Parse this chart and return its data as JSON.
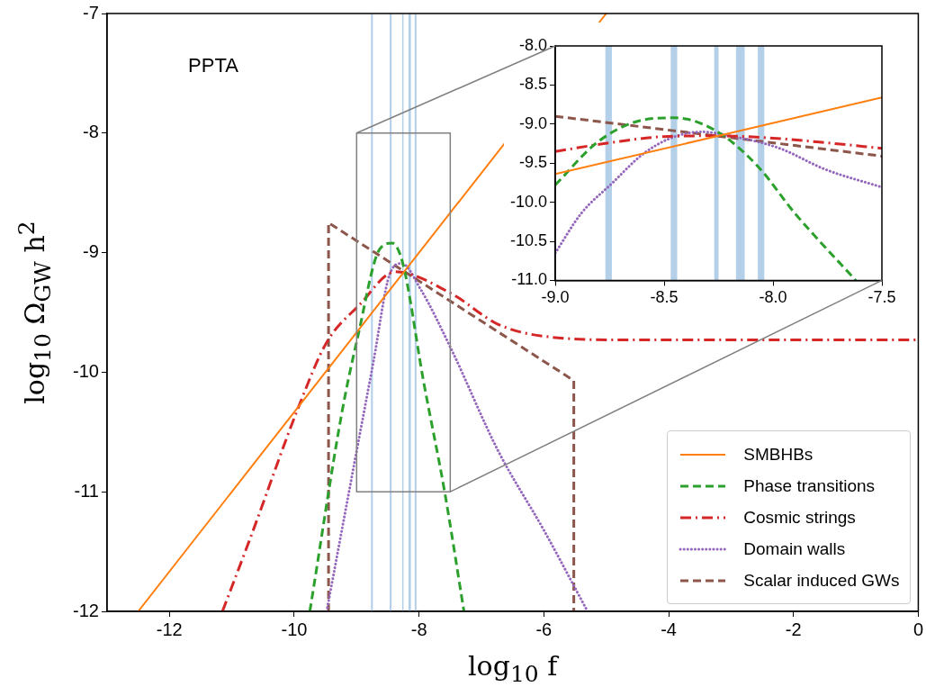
{
  "chart_data": [
    {
      "type": "line",
      "xlabel": "log$_{10}$ f",
      "ylabel": "log$_{10}$ Ω$_{GW}$ h$^{2}$",
      "annotations": [
        "PPTA"
      ],
      "xlim": [
        -13,
        0
      ],
      "xticks": [
        -12,
        -10,
        -8,
        -6,
        -4,
        -2,
        0
      ],
      "ylim": [
        -12,
        -7
      ],
      "yticks": [
        -12,
        -11,
        -10,
        -9,
        -8,
        -7
      ],
      "grid": false,
      "legend": "bottom right",
      "bands": [
        {
          "axis": "x",
          "from": -8.77,
          "to": -8.74,
          "color": "#b4d0e8"
        },
        {
          "axis": "x",
          "from": -8.47,
          "to": -8.44,
          "color": "#b4d0e8"
        },
        {
          "axis": "x",
          "from": -8.27,
          "to": -8.25,
          "color": "#b4d0e8"
        },
        {
          "axis": "x",
          "from": -8.17,
          "to": -8.13,
          "color": "#b4d0e8"
        },
        {
          "axis": "x",
          "from": -8.07,
          "to": -8.04,
          "color": "#b4d0e8"
        }
      ],
      "series": [
        {
          "name": "SMBHBs",
          "color": "#ff7f0e",
          "line_style": "solid",
          "x": [
            -12.5,
            -5.0
          ],
          "values": [
            -12,
            -7
          ]
        },
        {
          "name": "Phase transitions",
          "color": "#2ca02c",
          "line_style": "dashed",
          "x": [
            -9.75,
            -9.23,
            -8.98,
            -8.63,
            -8.43,
            -8.26,
            -7.93,
            -7.59,
            -7.28
          ],
          "values": [
            -12,
            -10.32,
            -9.7,
            -8.97,
            -8.92,
            -9.09,
            -10.07,
            -11,
            -12
          ]
        },
        {
          "name": "Cosmic strings",
          "color": "#d62728",
          "line_style": "dashdot",
          "x": [
            -11.15,
            -10.72,
            -9.9,
            -9.48,
            -8.96,
            -8.38,
            -7.49,
            -6.73,
            -5.99,
            -4.65,
            -3,
            0
          ],
          "values": [
            -12,
            -11.41,
            -10.25,
            -9.75,
            -9.44,
            -9.16,
            -9.34,
            -9.6,
            -9.7,
            -9.73,
            -9.73,
            -9.73
          ]
        },
        {
          "name": "Domain walls",
          "color": "#9467bd",
          "line_style": "dotted",
          "x": [
            -9.48,
            -9.0,
            -8.73,
            -8.47,
            -8.28,
            -7.97,
            -7.49,
            -6.73,
            -5.99,
            -5.3
          ],
          "values": [
            -12,
            -10.66,
            -9.91,
            -9.18,
            -9.09,
            -9.31,
            -9.8,
            -10.66,
            -11.33,
            -12
          ]
        },
        {
          "name": "Scalar induced GWs",
          "color": "#8c564b",
          "line_style": "dashed",
          "x": [
            -9.45,
            -9.45,
            -5.52,
            -5.52
          ],
          "values": [
            -12,
            -8.75,
            -10.07,
            -12
          ]
        }
      ]
    },
    {
      "type": "line",
      "xlim": [
        -9,
        -7.5
      ],
      "xticks": [
        {
          "value": -9,
          "label": "-9.0"
        },
        {
          "value": -8.5,
          "label": "-8.5"
        },
        {
          "value": -8,
          "label": "-8.0"
        },
        {
          "value": -7.5,
          "label": "-7.5"
        }
      ],
      "ylim": [
        -11,
        -8
      ],
      "yticks": [
        {
          "value": -11,
          "label": "-11.0"
        },
        {
          "value": -10.5,
          "label": "-10.5"
        },
        {
          "value": -10,
          "label": "-10.0"
        },
        {
          "value": -9.5,
          "label": "-9.5"
        },
        {
          "value": -9,
          "label": "-9.0"
        },
        {
          "value": -8.5,
          "label": "-8.5"
        },
        {
          "value": -8,
          "label": "-8.0"
        }
      ],
      "grid": false,
      "bands": [
        {
          "axis": "x",
          "from": -8.77,
          "to": -8.74,
          "color": "#b4d0e8"
        },
        {
          "axis": "x",
          "from": -8.47,
          "to": -8.44,
          "color": "#b4d0e8"
        },
        {
          "axis": "x",
          "from": -8.27,
          "to": -8.25,
          "color": "#b4d0e8"
        },
        {
          "axis": "x",
          "from": -8.17,
          "to": -8.13,
          "color": "#b4d0e8"
        },
        {
          "axis": "x",
          "from": -8.07,
          "to": -8.04,
          "color": "#b4d0e8"
        }
      ],
      "series": [
        {
          "color": "#ff7f0e",
          "line_style": "solid",
          "x": [
            -9,
            -7.5
          ],
          "values": [
            -9.64,
            -8.66
          ]
        },
        {
          "color": "#2ca02c",
          "line_style": "dashed",
          "x": [
            -9,
            -8.81,
            -8.63,
            -8.45,
            -8.26,
            -8.07,
            -7.9,
            -7.62
          ],
          "values": [
            -9.78,
            -9.24,
            -8.97,
            -8.92,
            -9.09,
            -9.54,
            -10.14,
            -11
          ]
        },
        {
          "color": "#d62728",
          "line_style": "dashdot",
          "x": [
            -9,
            -8.75,
            -8.5,
            -8.25,
            -8,
            -7.75,
            -7.5
          ],
          "values": [
            -9.35,
            -9.24,
            -9.16,
            -9.15,
            -9.18,
            -9.24,
            -9.31
          ]
        },
        {
          "color": "#9467bd",
          "line_style": "dotted",
          "x": [
            -9,
            -8.88,
            -8.74,
            -8.6,
            -8.47,
            -8.33,
            -8.18,
            -7.97,
            -7.76,
            -7.51
          ],
          "values": [
            -10.65,
            -10.14,
            -9.76,
            -9.39,
            -9.18,
            -9.1,
            -9.16,
            -9.31,
            -9.58,
            -9.8
          ]
        },
        {
          "color": "#8c564b",
          "line_style": "dashed",
          "x": [
            -9,
            -7.5
          ],
          "values": [
            -8.9,
            -9.41
          ]
        }
      ]
    }
  ]
}
